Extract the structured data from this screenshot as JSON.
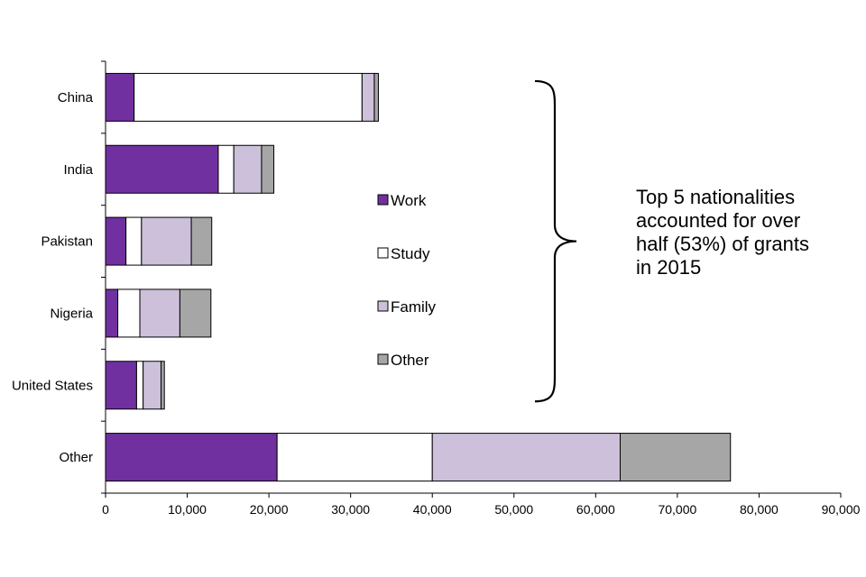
{
  "chart_data": {
    "type": "bar",
    "orientation": "horizontal",
    "stacked": true,
    "categories": [
      "China",
      "India",
      "Pakistan",
      "Nigeria",
      "United States",
      "Other"
    ],
    "series": [
      {
        "name": "Work",
        "color": "#7030a0",
        "values": [
          3500,
          13800,
          2500,
          1500,
          3800,
          21000
        ]
      },
      {
        "name": "Study",
        "color": "#ffffff",
        "values": [
          27900,
          1900,
          1900,
          2700,
          800,
          19000
        ]
      },
      {
        "name": "Family",
        "color": "#ccc0da",
        "values": [
          1500,
          3400,
          6100,
          4900,
          2200,
          23000
        ]
      },
      {
        "name": "Other",
        "color": "#a6a6a6",
        "values": [
          500,
          1500,
          2500,
          3800,
          400,
          13500
        ]
      }
    ],
    "xlim": [
      0,
      90000
    ],
    "xticks": [
      0,
      10000,
      20000,
      30000,
      40000,
      50000,
      60000,
      70000,
      80000,
      90000
    ],
    "xtick_labels": [
      "0",
      "10,000",
      "20,000",
      "30,000",
      "40,000",
      "50,000",
      "60,000",
      "70,000",
      "80,000",
      "90,000"
    ],
    "grid": false,
    "legend_position": "center",
    "annotation": {
      "lines": [
        "Top 5 nationalities",
        "accounted for over",
        "half (53%) of grants",
        "in 2015"
      ],
      "brace_spans": [
        "China",
        "United States"
      ]
    }
  }
}
